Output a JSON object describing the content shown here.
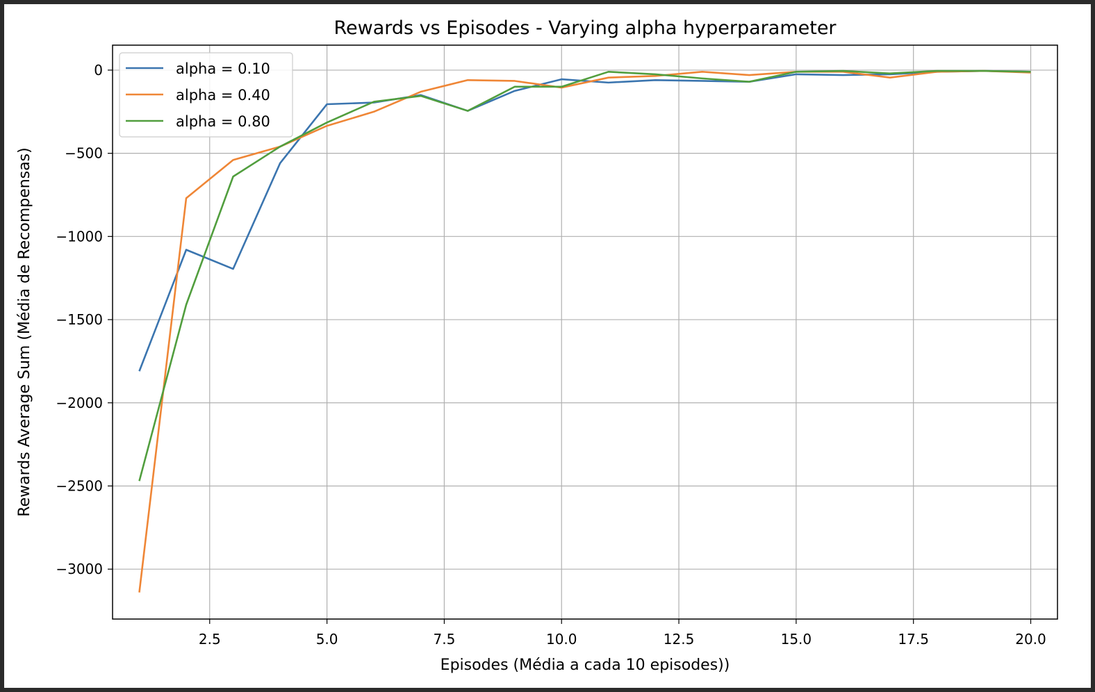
{
  "chart_data": {
    "type": "line",
    "title": "Rewards vs Episodes - Varying alpha hyperparameter",
    "xlabel": "Episodes (Média a cada 10 episodes))",
    "ylabel": "Rewards Average Sum (Média de Recompensas)",
    "xlim": [
      0.43,
      20.57
    ],
    "ylim": [
      -3300,
      150
    ],
    "x_ticks": [
      2.5,
      5.0,
      7.5,
      10.0,
      12.5,
      15.0,
      17.5,
      20.0
    ],
    "x_tick_labels": [
      "2.5",
      "5.0",
      "7.5",
      "10.0",
      "12.5",
      "15.0",
      "17.5",
      "20.0"
    ],
    "y_ticks": [
      0,
      -500,
      -1000,
      -1500,
      -2000,
      -2500,
      -3000
    ],
    "y_tick_labels": [
      "0",
      "−500",
      "−1000",
      "−1500",
      "−2000",
      "−2500",
      "−3000"
    ],
    "grid": true,
    "legend_position": "upper-left",
    "x": [
      1,
      2,
      3,
      4,
      5,
      6,
      7,
      8,
      9,
      10,
      11,
      12,
      13,
      14,
      15,
      16,
      17,
      18,
      19,
      20
    ],
    "series": [
      {
        "name": "alpha = 0.10",
        "color": "#3b75af",
        "values": [
          -1810,
          -1080,
          -1195,
          -560,
          -205,
          -195,
          -150,
          -245,
          -125,
          -55,
          -75,
          -60,
          -65,
          -70,
          -25,
          -30,
          -25,
          -10,
          -5,
          -10
        ]
      },
      {
        "name": "alpha = 0.40",
        "color": "#ef8636",
        "values": [
          -3140,
          -770,
          -540,
          -460,
          -335,
          -250,
          -130,
          -60,
          -65,
          -105,
          -45,
          -35,
          -10,
          -30,
          -10,
          -10,
          -45,
          -10,
          -5,
          -15
        ]
      },
      {
        "name": "alpha = 0.80",
        "color": "#519e3e",
        "values": [
          -2470,
          -1410,
          -640,
          -460,
          -315,
          -190,
          -155,
          -245,
          -100,
          -100,
          -10,
          -25,
          -50,
          -70,
          -10,
          -5,
          -20,
          -5,
          -5,
          -10
        ]
      }
    ]
  }
}
